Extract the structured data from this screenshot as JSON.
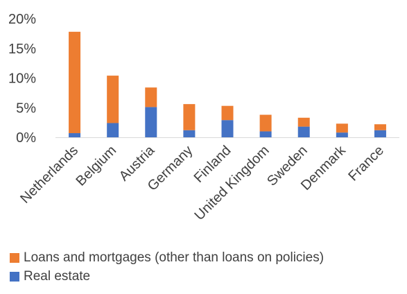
{
  "chart_data": {
    "type": "bar",
    "stacked": true,
    "categories": [
      "Netherlands",
      "Belgium",
      "Austria",
      "Germany",
      "Finland",
      "United Kingdom",
      "Sweden",
      "Denmark",
      "France"
    ],
    "series": [
      {
        "name": "Real estate",
        "color": "#4472C4",
        "values": [
          0.7,
          2.4,
          5.1,
          1.2,
          2.9,
          1.0,
          1.8,
          0.8,
          1.2
        ]
      },
      {
        "name": "Loans and mortgages (other than loans on policies)",
        "color": "#ED7D31",
        "values": [
          17.1,
          8.0,
          3.3,
          4.4,
          2.4,
          2.8,
          1.5,
          1.5,
          1.0
        ]
      }
    ],
    "ylim": [
      0,
      20
    ],
    "yticks": [
      "0%",
      "5%",
      "10%",
      "15%",
      "20%"
    ],
    "ytick_values": [
      0,
      5,
      10,
      15,
      20
    ],
    "gridlines": false,
    "legend_position": "bottom",
    "legend_order": [
      "Loans and mortgages (other than loans on policies)",
      "Real estate"
    ],
    "title": "",
    "xlabel": "",
    "ylabel": ""
  }
}
